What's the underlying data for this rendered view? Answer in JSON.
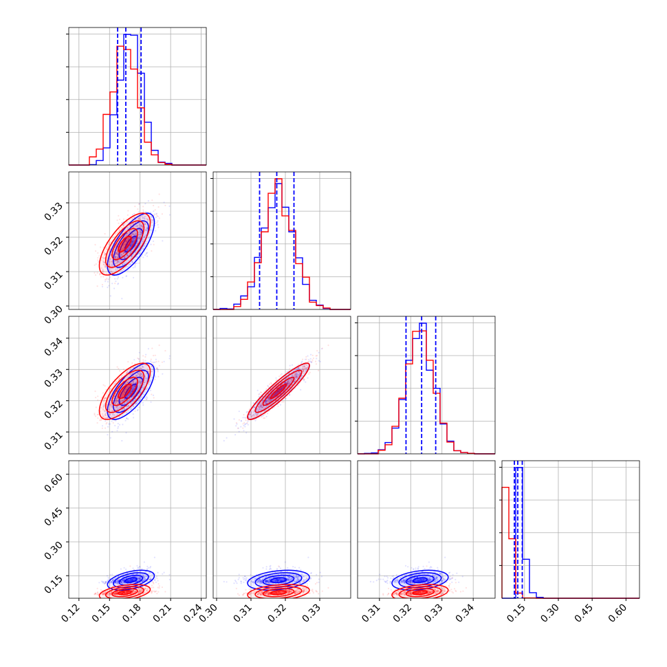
{
  "figure": {
    "type": "corner_plot",
    "grid": true
  },
  "colors": {
    "series_a": "#0000ff",
    "series_b": "#ff0000",
    "grid": "#b0b0b0",
    "frame": "#000000"
  },
  "chart_data": {
    "type": "corner",
    "parameters": [
      {
        "range": [
          0.11,
          0.245
        ],
        "ticks": [
          0.12,
          0.15,
          0.18,
          0.21,
          0.24
        ],
        "tick_labels": [
          "0.12",
          "0.15",
          "0.18",
          "0.21",
          "0.24"
        ]
      },
      {
        "range": [
          0.299,
          0.339
        ],
        "ticks": [
          0.3,
          0.31,
          0.32,
          0.33
        ],
        "tick_labels": [
          "0.30",
          "0.31",
          "0.32",
          "0.33"
        ]
      },
      {
        "range": [
          0.303,
          0.347
        ],
        "ticks": [
          0.31,
          0.32,
          0.33,
          0.34
        ],
        "tick_labels": [
          "0.31",
          "0.32",
          "0.33",
          "0.34"
        ]
      },
      {
        "range": [
          0.05,
          0.66
        ],
        "ticks": [
          0.15,
          0.3,
          0.45,
          0.6
        ],
        "tick_labels": [
          "0.15",
          "0.30",
          "0.45",
          "0.60"
        ]
      }
    ],
    "series": [
      {
        "color": "#0000ff",
        "mean": [
          0.171,
          0.318,
          0.323,
          0.13
        ],
        "std": [
          0.0115,
          0.0045,
          0.0045,
          0.022
        ],
        "corr": [
          [
            1,
            0.7,
            0.7,
            0.45
          ],
          [
            0.7,
            1,
            0.92,
            0.3
          ],
          [
            0.7,
            0.92,
            1,
            0.3
          ],
          [
            0.45,
            0.3,
            0.3,
            1
          ]
        ],
        "quantiles": [
          [
            0.158,
            0.166,
            0.181
          ],
          [
            0.3125,
            0.3175,
            0.3225
          ],
          [
            0.3185,
            0.3235,
            0.328
          ],
          [
            0.105,
            0.12,
            0.14
          ]
        ]
      },
      {
        "color": "#ff0000",
        "mean": [
          0.165,
          0.318,
          0.323,
          0.075
        ],
        "std": [
          0.0125,
          0.0045,
          0.0045,
          0.018
        ],
        "corr": [
          [
            1,
            0.7,
            0.7,
            0.4
          ],
          [
            0.7,
            1,
            0.92,
            0.3
          ],
          [
            0.7,
            0.92,
            1,
            0.3
          ],
          [
            0.4,
            0.3,
            0.3,
            1
          ]
        ]
      }
    ]
  }
}
